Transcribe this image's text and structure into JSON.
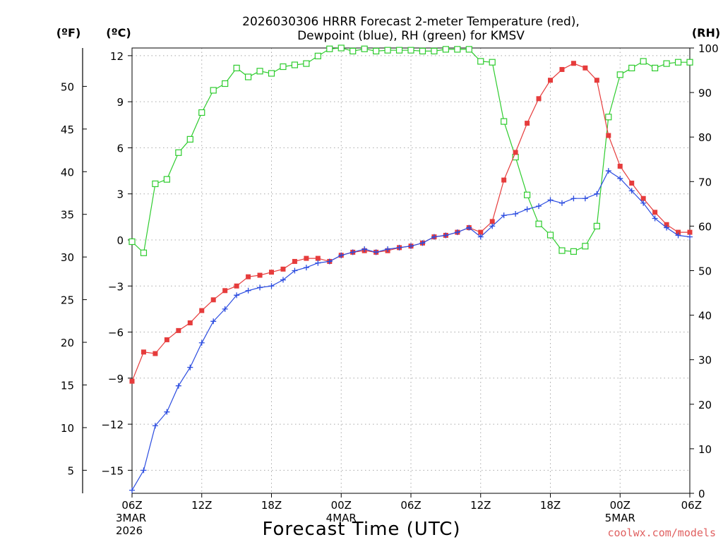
{
  "chart_data": {
    "type": "line",
    "title_line1": "2026030306 HRRR Forecast 2-meter Temperature (red),",
    "title_line2": "Dewpoint (blue), RH (green) for KMSV",
    "unit_f": "(ºF)",
    "unit_c": "(ºC)",
    "unit_rh": "(RH)",
    "xlabel": "Forecast Time (UTC)",
    "credit": "coolwx.com/models",
    "credit_color": "#e06060",
    "ylim_c": [
      -16.5,
      12.5
    ],
    "ylim_rh": [
      0,
      100
    ],
    "y_ticks_c": [
      "12",
      "9",
      "6",
      "3",
      "0",
      "−3",
      "−6",
      "−9",
      "−12",
      "−15"
    ],
    "y_ticks_f": [
      "50",
      "45",
      "40",
      "35",
      "30",
      "25",
      "20",
      "15",
      "10",
      "5"
    ],
    "y_ticks_rh": [
      "100",
      "90",
      "80",
      "70",
      "60",
      "50",
      "40",
      "30",
      "20",
      "10",
      "0"
    ],
    "x_ticks": [
      {
        "hour": 0,
        "label": "06Z",
        "sub1": "3MAR",
        "sub2": "2026"
      },
      {
        "hour": 6,
        "label": "12Z",
        "sub1": "",
        "sub2": ""
      },
      {
        "hour": 12,
        "label": "18Z",
        "sub1": "",
        "sub2": ""
      },
      {
        "hour": 18,
        "label": "00Z",
        "sub1": "4MAR",
        "sub2": ""
      },
      {
        "hour": 24,
        "label": "06Z",
        "sub1": "",
        "sub2": ""
      },
      {
        "hour": 30,
        "label": "12Z",
        "sub1": "",
        "sub2": ""
      },
      {
        "hour": 36,
        "label": "18Z",
        "sub1": "",
        "sub2": ""
      },
      {
        "hour": 42,
        "label": "00Z",
        "sub1": "5MAR",
        "sub2": ""
      },
      {
        "hour": 48,
        "label": "06Z",
        "sub1": "",
        "sub2": ""
      }
    ],
    "x_range": [
      0,
      48
    ],
    "series": [
      {
        "name": "Temperature",
        "unit": "C",
        "color": "#e63c3c",
        "marker": "filled-square",
        "values": [
          -9.2,
          -7.3,
          -7.4,
          -6.5,
          -5.9,
          -5.4,
          -4.6,
          -3.9,
          -3.3,
          -3.0,
          -2.4,
          -2.3,
          -2.1,
          -1.9,
          -1.4,
          -1.2,
          -1.2,
          -1.4,
          -1.0,
          -0.8,
          -0.7,
          -0.8,
          -0.7,
          -0.5,
          -0.4,
          -0.2,
          0.2,
          0.3,
          0.5,
          0.8,
          0.5,
          1.2,
          3.9,
          5.7,
          7.6,
          9.2,
          10.4,
          11.1,
          11.5,
          11.2,
          10.4,
          6.8,
          4.8,
          3.7,
          2.7,
          1.8,
          1.0,
          0.5,
          0.5
        ]
      },
      {
        "name": "Dewpoint",
        "unit": "C",
        "color": "#2b4ce0",
        "marker": "plus",
        "values": [
          -16.3,
          -15.0,
          -12.1,
          -11.2,
          -9.5,
          -8.3,
          -6.7,
          -5.3,
          -4.5,
          -3.6,
          -3.3,
          -3.1,
          -3.0,
          -2.6,
          -2.0,
          -1.8,
          -1.5,
          -1.4,
          -1.0,
          -0.8,
          -0.6,
          -0.8,
          -0.6,
          -0.5,
          -0.4,
          -0.2,
          0.2,
          0.3,
          0.5,
          0.8,
          0.2,
          0.9,
          1.6,
          1.7,
          2.0,
          2.2,
          2.6,
          2.4,
          2.7,
          2.7,
          3.0,
          4.5,
          4.0,
          3.2,
          2.4,
          1.4,
          0.8,
          0.3,
          0.2
        ]
      },
      {
        "name": "RH",
        "unit": "%",
        "color": "#2ecc2e",
        "marker": "open-square",
        "values": [
          56.5,
          54.0,
          69.5,
          70.5,
          76.5,
          79.5,
          85.5,
          90.5,
          92.0,
          95.5,
          93.5,
          94.8,
          94.3,
          95.8,
          96.2,
          96.5,
          98.2,
          99.8,
          100.0,
          99.3,
          99.8,
          99.3,
          99.5,
          99.5,
          99.5,
          99.3,
          99.3,
          99.7,
          99.7,
          99.7,
          97.0,
          96.8,
          83.5,
          75.5,
          67.0,
          60.5,
          58.0,
          54.5,
          54.3,
          55.5,
          60.0,
          84.5,
          94.0,
          95.5,
          97.0,
          95.5,
          96.5,
          96.8,
          96.8
        ]
      }
    ]
  }
}
